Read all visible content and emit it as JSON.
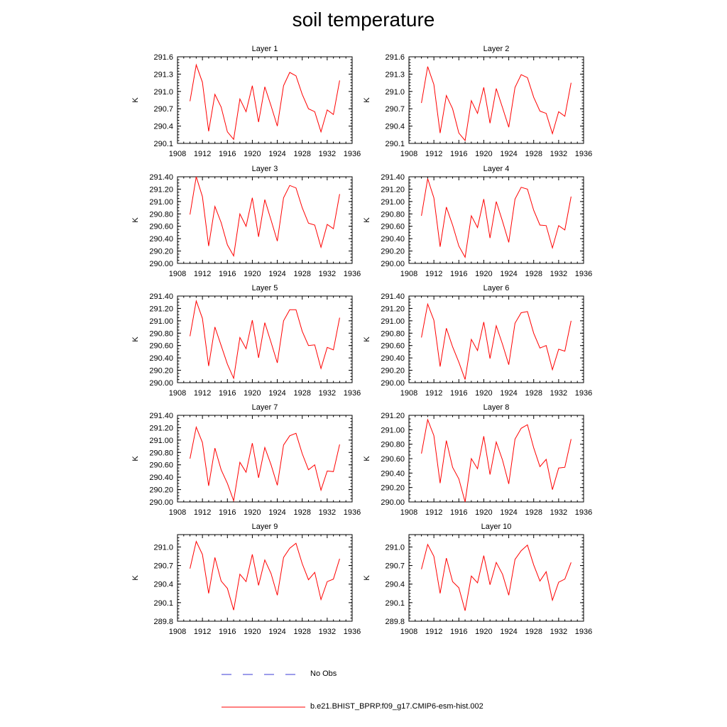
{
  "title": "soil temperature",
  "legend": {
    "obs_label": "No Obs",
    "obs_color": "#3b3bd6",
    "model_label": "b.e21.BHIST_BPRP.f09_g17.CMIP6-esm-hist.002",
    "model_color": "#ff0000"
  },
  "chart_data": [
    {
      "type": "line",
      "title": "Layer 1",
      "ylabel": "K",
      "xlim": [
        1908,
        1936
      ],
      "ylim": [
        290.1,
        291.6
      ],
      "yticks": [
        "290.1",
        "290.4",
        "290.7",
        "291.0",
        "291.3",
        "291.6"
      ],
      "yminor": 0.05,
      "xticks": [
        1908,
        1912,
        1916,
        1920,
        1924,
        1928,
        1932,
        1936
      ],
      "x": [
        1910,
        1911,
        1912,
        1913,
        1914,
        1915,
        1916,
        1917,
        1918,
        1919,
        1920,
        1921,
        1922,
        1923,
        1924,
        1925,
        1926,
        1927,
        1928,
        1929,
        1930,
        1931,
        1932,
        1933,
        1934
      ],
      "series": [
        {
          "color": "#ff0000",
          "values": [
            290.83,
            291.46,
            291.16,
            290.31,
            290.95,
            290.73,
            290.3,
            290.17,
            290.87,
            290.65,
            291.1,
            290.47,
            291.08,
            290.75,
            290.4,
            291.1,
            291.33,
            291.27,
            290.95,
            290.7,
            290.65,
            290.3,
            290.68,
            290.6,
            291.19
          ]
        }
      ]
    },
    {
      "type": "line",
      "title": "Layer 2",
      "ylabel": "K",
      "xlim": [
        1908,
        1936
      ],
      "ylim": [
        290.1,
        291.6
      ],
      "yticks": [
        "290.1",
        "290.4",
        "290.7",
        "291.0",
        "291.3",
        "291.6"
      ],
      "yminor": 0.05,
      "xticks": [
        1908,
        1912,
        1916,
        1920,
        1924,
        1928,
        1932,
        1936
      ],
      "x": [
        1910,
        1911,
        1912,
        1913,
        1914,
        1915,
        1916,
        1917,
        1918,
        1919,
        1920,
        1921,
        1922,
        1923,
        1924,
        1925,
        1926,
        1927,
        1928,
        1929,
        1930,
        1931,
        1932,
        1933,
        1934
      ],
      "series": [
        {
          "color": "#ff0000",
          "values": [
            290.8,
            291.43,
            291.12,
            290.28,
            290.93,
            290.7,
            290.28,
            290.15,
            290.84,
            290.62,
            291.07,
            290.45,
            291.05,
            290.72,
            290.38,
            291.07,
            291.29,
            291.24,
            290.9,
            290.66,
            290.62,
            290.27,
            290.65,
            290.57,
            291.15
          ]
        }
      ]
    },
    {
      "type": "line",
      "title": "Layer 3",
      "ylabel": "K",
      "xlim": [
        1908,
        1936
      ],
      "ylim": [
        290.0,
        291.4
      ],
      "yticks": [
        "290.00",
        "290.20",
        "290.40",
        "290.60",
        "290.80",
        "291.00",
        "291.20",
        "291.40"
      ],
      "yminor": 0.05,
      "xticks": [
        1908,
        1912,
        1916,
        1920,
        1924,
        1928,
        1932,
        1936
      ],
      "x": [
        1910,
        1911,
        1912,
        1913,
        1914,
        1915,
        1916,
        1917,
        1918,
        1919,
        1920,
        1921,
        1922,
        1923,
        1924,
        1925,
        1926,
        1927,
        1928,
        1929,
        1930,
        1931,
        1932,
        1933,
        1934
      ],
      "series": [
        {
          "color": "#ff0000",
          "values": [
            290.79,
            291.4,
            291.08,
            290.28,
            290.92,
            290.66,
            290.3,
            290.12,
            290.8,
            290.6,
            291.06,
            290.43,
            291.03,
            290.7,
            290.36,
            291.06,
            291.26,
            291.22,
            290.9,
            290.65,
            290.62,
            290.26,
            290.63,
            290.56,
            291.12
          ]
        }
      ]
    },
    {
      "type": "line",
      "title": "Layer 4",
      "ylabel": "K",
      "xlim": [
        1908,
        1936
      ],
      "ylim": [
        290.0,
        291.4
      ],
      "yticks": [
        "290.00",
        "290.20",
        "290.40",
        "290.60",
        "290.80",
        "291.00",
        "291.20",
        "291.40"
      ],
      "yminor": 0.05,
      "xticks": [
        1908,
        1912,
        1916,
        1920,
        1924,
        1928,
        1932,
        1936
      ],
      "x": [
        1910,
        1911,
        1912,
        1913,
        1914,
        1915,
        1916,
        1917,
        1918,
        1919,
        1920,
        1921,
        1922,
        1923,
        1924,
        1925,
        1926,
        1927,
        1928,
        1929,
        1930,
        1931,
        1932,
        1933,
        1934
      ],
      "series": [
        {
          "color": "#ff0000",
          "values": [
            290.77,
            291.37,
            291.06,
            290.27,
            290.91,
            290.62,
            290.28,
            290.1,
            290.77,
            290.58,
            291.04,
            290.41,
            291.0,
            290.68,
            290.34,
            291.04,
            291.23,
            291.2,
            290.86,
            290.62,
            290.61,
            290.25,
            290.61,
            290.54,
            291.08
          ]
        }
      ]
    },
    {
      "type": "line",
      "title": "Layer 5",
      "ylabel": "K",
      "xlim": [
        1908,
        1936
      ],
      "ylim": [
        290.0,
        291.4
      ],
      "yticks": [
        "290.00",
        "290.20",
        "290.40",
        "290.60",
        "290.80",
        "291.00",
        "291.20",
        "291.40"
      ],
      "yminor": 0.05,
      "xticks": [
        1908,
        1912,
        1916,
        1920,
        1924,
        1928,
        1932,
        1936
      ],
      "x": [
        1910,
        1911,
        1912,
        1913,
        1914,
        1915,
        1916,
        1917,
        1918,
        1919,
        1920,
        1921,
        1922,
        1923,
        1924,
        1925,
        1926,
        1927,
        1928,
        1929,
        1930,
        1931,
        1932,
        1933,
        1934
      ],
      "series": [
        {
          "color": "#ff0000",
          "values": [
            290.75,
            291.32,
            291.04,
            290.27,
            290.9,
            290.6,
            290.3,
            290.07,
            290.73,
            290.55,
            291.01,
            290.4,
            290.97,
            290.65,
            290.32,
            291.0,
            291.18,
            291.18,
            290.83,
            290.6,
            290.61,
            290.23,
            290.57,
            290.53,
            291.05
          ]
        }
      ]
    },
    {
      "type": "line",
      "title": "Layer 6",
      "ylabel": "K",
      "xlim": [
        1908,
        1936
      ],
      "ylim": [
        290.0,
        291.4
      ],
      "yticks": [
        "290.00",
        "290.20",
        "290.40",
        "290.60",
        "290.80",
        "291.00",
        "291.20",
        "291.40"
      ],
      "yminor": 0.05,
      "xticks": [
        1908,
        1912,
        1916,
        1920,
        1924,
        1928,
        1932,
        1936
      ],
      "x": [
        1910,
        1911,
        1912,
        1913,
        1914,
        1915,
        1916,
        1917,
        1918,
        1919,
        1920,
        1921,
        1922,
        1923,
        1924,
        1925,
        1926,
        1927,
        1928,
        1929,
        1930,
        1931,
        1932,
        1933,
        1934
      ],
      "series": [
        {
          "color": "#ff0000",
          "values": [
            290.73,
            291.27,
            291.01,
            290.26,
            290.88,
            290.58,
            290.33,
            290.05,
            290.7,
            290.52,
            290.98,
            290.39,
            290.92,
            290.62,
            290.29,
            290.96,
            291.13,
            291.15,
            290.8,
            290.56,
            290.6,
            290.21,
            290.54,
            290.51,
            291.0
          ]
        }
      ]
    },
    {
      "type": "line",
      "title": "Layer 7",
      "ylabel": "K",
      "xlim": [
        1908,
        1936
      ],
      "ylim": [
        290.0,
        291.4
      ],
      "yticks": [
        "290.00",
        "290.20",
        "290.40",
        "290.60",
        "290.80",
        "291.00",
        "291.20",
        "291.40"
      ],
      "yminor": 0.05,
      "xticks": [
        1908,
        1912,
        1916,
        1920,
        1924,
        1928,
        1932,
        1936
      ],
      "x": [
        1910,
        1911,
        1912,
        1913,
        1914,
        1915,
        1916,
        1917,
        1918,
        1919,
        1920,
        1921,
        1922,
        1923,
        1924,
        1925,
        1926,
        1927,
        1928,
        1929,
        1930,
        1931,
        1932,
        1933,
        1934
      ],
      "series": [
        {
          "color": "#ff0000",
          "values": [
            290.7,
            291.21,
            290.96,
            290.26,
            290.87,
            290.52,
            290.3,
            290.02,
            290.64,
            290.48,
            290.95,
            290.39,
            290.88,
            290.6,
            290.27,
            290.92,
            291.07,
            291.11,
            290.78,
            290.52,
            290.6,
            290.19,
            290.5,
            290.49,
            290.93
          ]
        }
      ]
    },
    {
      "type": "line",
      "title": "Layer 8",
      "ylabel": "K",
      "xlim": [
        1908,
        1936
      ],
      "ylim": [
        290.0,
        291.2
      ],
      "yticks": [
        "290.00",
        "290.20",
        "290.40",
        "290.60",
        "290.80",
        "291.00",
        "291.20"
      ],
      "yminor": 0.05,
      "xticks": [
        1908,
        1912,
        1916,
        1920,
        1924,
        1928,
        1932,
        1936
      ],
      "x": [
        1910,
        1911,
        1912,
        1913,
        1914,
        1915,
        1916,
        1917,
        1918,
        1919,
        1920,
        1921,
        1922,
        1923,
        1924,
        1925,
        1926,
        1927,
        1928,
        1929,
        1930,
        1931,
        1932,
        1933,
        1934
      ],
      "series": [
        {
          "color": "#ff0000",
          "values": [
            290.67,
            291.14,
            290.92,
            290.26,
            290.85,
            290.48,
            290.32,
            290.0,
            290.6,
            290.46,
            290.91,
            290.38,
            290.83,
            290.58,
            290.25,
            290.87,
            291.02,
            291.07,
            290.75,
            290.49,
            290.59,
            290.17,
            290.47,
            290.48,
            290.87
          ]
        }
      ]
    },
    {
      "type": "line",
      "title": "Layer 9",
      "ylabel": "K",
      "xlim": [
        1908,
        1936
      ],
      "ylim": [
        289.8,
        291.2
      ],
      "yticks": [
        "289.8",
        "290.1",
        "290.4",
        "290.7",
        "291.0"
      ],
      "yminor": 0.05,
      "xticks": [
        1908,
        1912,
        1916,
        1920,
        1924,
        1928,
        1932,
        1936
      ],
      "x": [
        1910,
        1911,
        1912,
        1913,
        1914,
        1915,
        1916,
        1917,
        1918,
        1919,
        1920,
        1921,
        1922,
        1923,
        1924,
        1925,
        1926,
        1927,
        1928,
        1929,
        1930,
        1931,
        1932,
        1933,
        1934
      ],
      "series": [
        {
          "color": "#ff0000",
          "values": [
            290.65,
            291.09,
            290.88,
            290.25,
            290.83,
            290.45,
            290.33,
            289.98,
            290.56,
            290.44,
            290.88,
            290.38,
            290.79,
            290.57,
            290.22,
            290.83,
            290.98,
            291.06,
            290.73,
            290.47,
            290.59,
            290.15,
            290.44,
            290.48,
            290.81
          ]
        }
      ]
    },
    {
      "type": "line",
      "title": "Layer 10",
      "ylabel": "K",
      "xlim": [
        1908,
        1936
      ],
      "ylim": [
        289.8,
        291.2
      ],
      "yticks": [
        "289.8",
        "290.1",
        "290.4",
        "290.7",
        "291.0"
      ],
      "yminor": 0.05,
      "xticks": [
        1908,
        1912,
        1916,
        1920,
        1924,
        1928,
        1932,
        1936
      ],
      "x": [
        1910,
        1911,
        1912,
        1913,
        1914,
        1915,
        1916,
        1917,
        1918,
        1919,
        1920,
        1921,
        1922,
        1923,
        1924,
        1925,
        1926,
        1927,
        1928,
        1929,
        1930,
        1931,
        1932,
        1933,
        1934
      ],
      "series": [
        {
          "color": "#ff0000",
          "values": [
            290.64,
            291.04,
            290.85,
            290.25,
            290.82,
            290.44,
            290.34,
            289.97,
            290.53,
            290.42,
            290.86,
            290.39,
            290.75,
            290.56,
            290.22,
            290.8,
            290.94,
            291.03,
            290.71,
            290.45,
            290.6,
            290.14,
            290.43,
            290.48,
            290.75
          ]
        }
      ]
    }
  ]
}
